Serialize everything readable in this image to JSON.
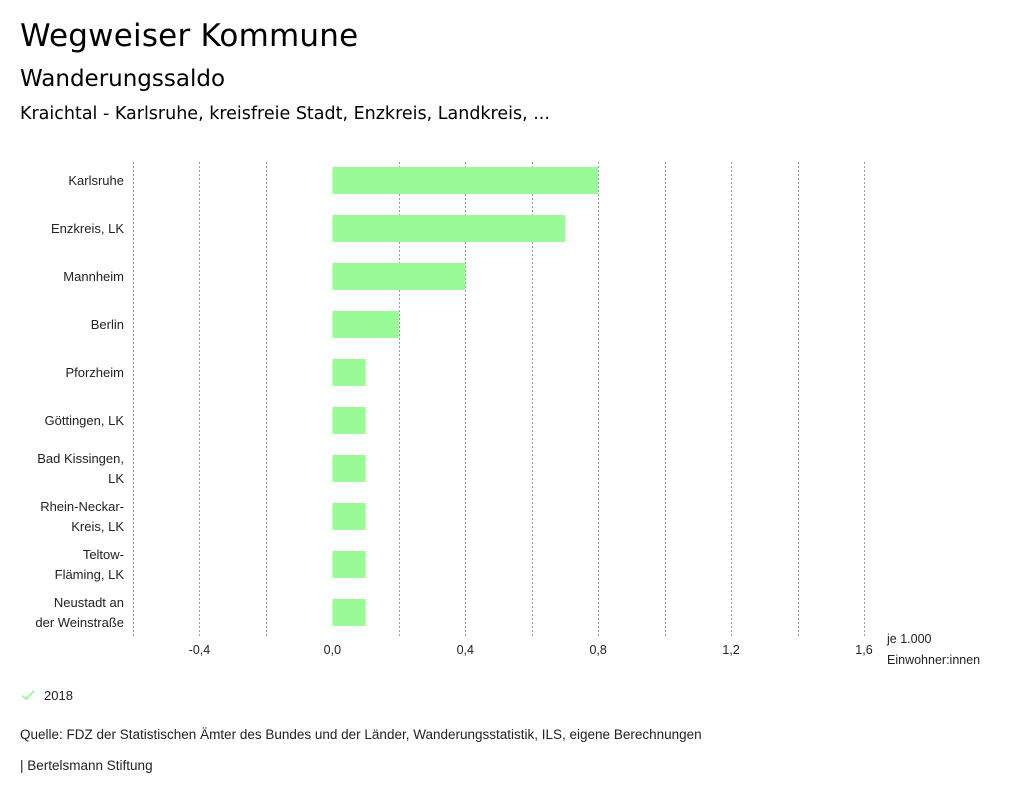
{
  "header": {
    "title": "Wegweiser Kommune",
    "subtitle": "Wanderungssaldo",
    "region": "Kraichtal - Karlsruhe, kreisfreie Stadt, Enzkreis, Landkreis, ..."
  },
  "chart_data": {
    "type": "bar",
    "orientation": "horizontal",
    "categories": [
      [
        "Karlsruhe"
      ],
      [
        "Enzkreis, LK"
      ],
      [
        "Mannheim"
      ],
      [
        "Berlin"
      ],
      [
        "Pforzheim"
      ],
      [
        "Göttingen, LK"
      ],
      [
        "Bad Kissingen,",
        "LK"
      ],
      [
        "Rhein-Neckar-",
        "Kreis, LK"
      ],
      [
        "Teltow-",
        "Fläming, LK"
      ],
      [
        "Neustadt an",
        "der Weinstraße"
      ]
    ],
    "series": [
      {
        "name": "2018",
        "values": [
          0.8,
          0.7,
          0.4,
          0.2,
          0.1,
          0.1,
          0.1,
          0.1,
          0.1,
          0.1
        ]
      }
    ],
    "xlim": [
      -0.6,
      1.6
    ],
    "ticks": [
      -0.4,
      0.0,
      0.4,
      0.8,
      1.2,
      1.6
    ],
    "tick_labels": [
      "-0,4",
      "0,0",
      "0,4",
      "0,8",
      "1,2",
      "1,6"
    ],
    "gridlines": [
      -0.6,
      -0.4,
      -0.2,
      0.2,
      0.4,
      0.6,
      0.8,
      1.0,
      1.2,
      1.4,
      1.6
    ],
    "grid": true,
    "unit_label": [
      "je 1.000",
      "Einwohner:innen"
    ],
    "bar_color": "#98fb98",
    "legend_position": "bottom-left"
  },
  "legend": {
    "label": "2018",
    "color": "#98fb98"
  },
  "footer": {
    "source": "Quelle: FDZ der Statistischen Ämter des Bundes und der Länder, Wanderungsstatistik, ILS, eigene Berechnungen",
    "credit": "| Bertelsmann Stiftung"
  }
}
